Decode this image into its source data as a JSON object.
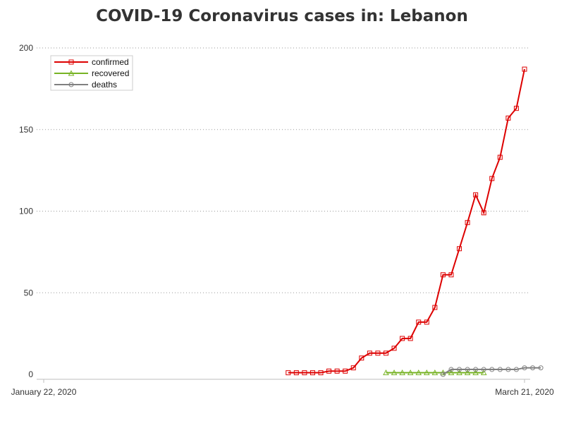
{
  "chart_data": {
    "type": "line",
    "title": "COVID-19 Coronavirus cases in: Lebanon",
    "xlabel": "",
    "ylabel": "",
    "x_ticks": [
      "January 22, 2020",
      "March 21, 2020"
    ],
    "x_day_span": 59,
    "ylim": [
      0,
      200
    ],
    "y_ticks": [
      0,
      50,
      100,
      150,
      200
    ],
    "grid": "horizontal dotted",
    "legend_position": "top-left",
    "series": [
      {
        "name": "confirmed",
        "color": "#dd0000",
        "marker": "square",
        "start_day": 30,
        "values": [
          1,
          1,
          1,
          1,
          1,
          2,
          2,
          2,
          4,
          10,
          13,
          13,
          13,
          16,
          22,
          22,
          32,
          32,
          41,
          61,
          61,
          77,
          93,
          110,
          99,
          120,
          133,
          157,
          163,
          187
        ]
      },
      {
        "name": "recovered",
        "color": "#77b324",
        "marker": "triangle",
        "start_day": 42,
        "values": [
          1,
          1,
          1,
          1,
          1,
          1,
          1,
          1,
          1,
          1,
          1,
          1,
          1
        ]
      },
      {
        "name": "deaths",
        "color": "#808080",
        "marker": "circle",
        "start_day": 49,
        "values": [
          0,
          3,
          3,
          3,
          3,
          3,
          3,
          3,
          3,
          3,
          4,
          4,
          4
        ]
      }
    ]
  }
}
